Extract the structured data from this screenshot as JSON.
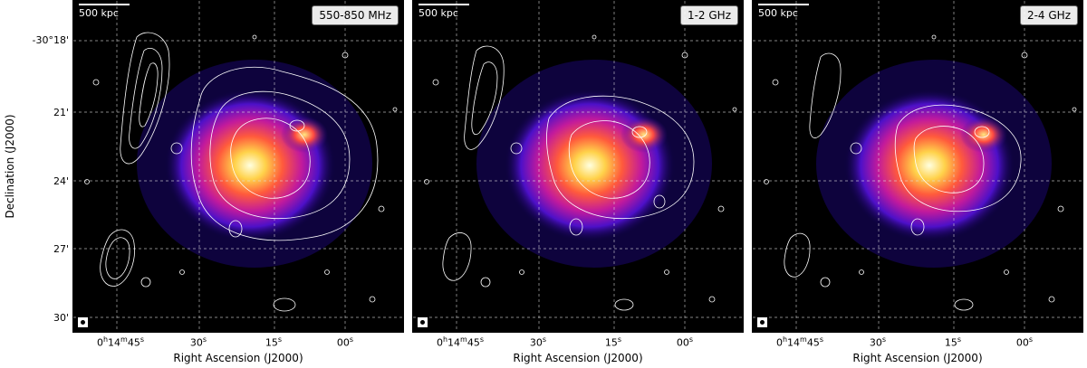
{
  "panels": [
    {
      "band_label": "550-850 MHz",
      "scalebar_label": "500 kpc"
    },
    {
      "band_label": "1-2 GHz",
      "scalebar_label": "500 kpc"
    },
    {
      "band_label": "2-4 GHz",
      "scalebar_label": "500 kpc"
    }
  ],
  "y_axis": {
    "label": "Declination (J2000)",
    "ticks": [
      "-30°18'",
      "21'",
      "24'",
      "27'",
      "30'"
    ]
  },
  "x_axis": {
    "label": "Right Ascension (J2000)",
    "ticks": [
      {
        "h": "0",
        "m": "14",
        "s": "45"
      },
      {
        "s": "30"
      },
      {
        "s": "15"
      },
      {
        "s": "00"
      }
    ]
  }
}
